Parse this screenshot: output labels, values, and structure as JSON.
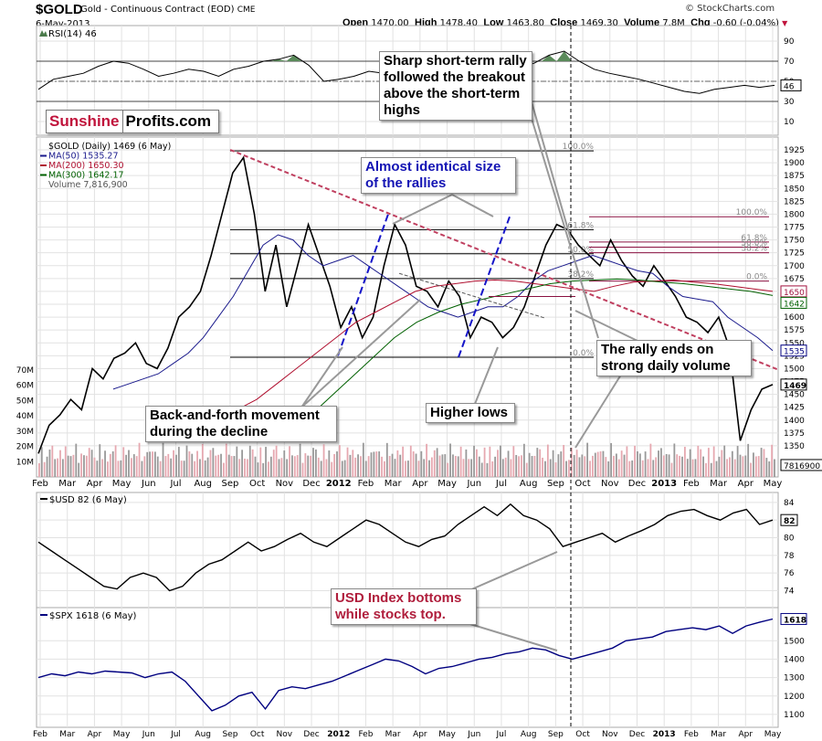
{
  "header": {
    "symbol": "$GOLD",
    "description": "Gold - Continuous Contract (EOD)",
    "exchange": "CME",
    "date": "6-May-2013",
    "credit": "© StockCharts.com",
    "open_label": "Open",
    "open": "1470.00",
    "high_label": "High",
    "high": "1478.40",
    "low_label": "Low",
    "low": "1463.80",
    "close_label": "Close",
    "close": "1469.30",
    "volume_label": "Volume",
    "volume": "7.8M",
    "chg_label": "Chg",
    "chg": "-0.60 (-0.04%)",
    "chg_direction": "down",
    "colors": {
      "down": "#c0143c"
    }
  },
  "logo": {
    "part1": "Sunshine",
    "part2": "Profits.com"
  },
  "callouts": {
    "sharp_rally": "Sharp short-term rally followed the breakout above the short-term highs",
    "identical_rallies": "Almost identical size of the rallies",
    "back_and_forth": "Back-and-forth movement during the decline",
    "higher_lows": "Higher lows",
    "rally_ends": "The rally ends on strong daily volume",
    "usd_bottoms": "USD Index bottoms while stocks top."
  },
  "chart_data": [
    {
      "type": "line",
      "panel": "rsi",
      "title": "RSI(14) 46",
      "ylim": [
        0,
        100
      ],
      "yticks": [
        10,
        30,
        50,
        70,
        90
      ],
      "reference_lines": [
        30,
        50,
        70
      ],
      "current_value": 46,
      "series": [
        {
          "name": "RSI(14)",
          "color": "#000000",
          "values": [
            42,
            52,
            55,
            58,
            65,
            70,
            68,
            62,
            55,
            58,
            62,
            60,
            55,
            62,
            65,
            70,
            72,
            76,
            66,
            50,
            52,
            55,
            60,
            58,
            52,
            48,
            45,
            38,
            42,
            52,
            62,
            66,
            64,
            68,
            76,
            80,
            70,
            62,
            58,
            55,
            52,
            48,
            44,
            40,
            38,
            42,
            44,
            46,
            44,
            46
          ]
        }
      ]
    },
    {
      "type": "line",
      "panel": "gold_price",
      "title": "$GOLD (Daily) 1469 (6 May)",
      "ylim": [
        1325,
        1925
      ],
      "yticks": [
        1350,
        1375,
        1400,
        1425,
        1450,
        1475,
        1500,
        1525,
        1550,
        1575,
        1600,
        1625,
        1650,
        1675,
        1700,
        1725,
        1750,
        1775,
        1800,
        1825,
        1850,
        1875,
        1900,
        1925
      ],
      "x_ticks": [
        "Feb",
        "Mar",
        "Apr",
        "May",
        "Jun",
        "Jul",
        "Aug",
        "Sep",
        "Oct",
        "Nov",
        "Dec",
        "2012",
        "Feb",
        "Mar",
        "Apr",
        "May",
        "Jun",
        "Jul",
        "Aug",
        "Sep",
        "Oct",
        "Nov",
        "Dec",
        "2013",
        "Feb",
        "Mar",
        "Apr",
        "May"
      ],
      "legend": [
        "$GOLD (Daily) 1469 (6 May)",
        "MA(50) 1535.27",
        "MA(200) 1650.30",
        "MA(300) 1642.17",
        "Volume 7,816,900"
      ],
      "value_tags": [
        {
          "label": "1650",
          "color": "#a0103c"
        },
        {
          "label": "1642",
          "color": "#006000"
        },
        {
          "label": "1535",
          "color": "#000080"
        },
        {
          "label": "1469",
          "color": "#000000"
        }
      ],
      "fibonacci_left": [
        {
          "label": "100.0%",
          "value": 1923
        },
        {
          "label": "61.8%",
          "value": 1770
        },
        {
          "label": "50.0%",
          "value": 1723
        },
        {
          "label": "38.2%",
          "value": 1675
        },
        {
          "label": "0.0%",
          "value": 1522
        }
      ],
      "fibonacci_right": [
        {
          "label": "100.0%",
          "value": 1795
        },
        {
          "label": "61.8%",
          "value": 1746
        },
        {
          "label": "50.0%",
          "value": 1736
        },
        {
          "label": "38.2%",
          "value": 1725
        },
        {
          "label": "0.0%",
          "value": 1670
        }
      ],
      "series": [
        {
          "name": "$GOLD",
          "color": "#000000",
          "values": [
            1335,
            1390,
            1410,
            1440,
            1420,
            1500,
            1480,
            1520,
            1530,
            1550,
            1510,
            1500,
            1540,
            1600,
            1620,
            1650,
            1720,
            1800,
            1880,
            1910,
            1800,
            1650,
            1740,
            1620,
            1700,
            1780,
            1720,
            1660,
            1580,
            1620,
            1560,
            1600,
            1700,
            1780,
            1740,
            1660,
            1650,
            1620,
            1670,
            1640,
            1560,
            1600,
            1590,
            1560,
            1580,
            1620,
            1680,
            1740,
            1780,
            1770,
            1740,
            1720,
            1700,
            1750,
            1710,
            1680,
            1660,
            1700,
            1670,
            1640,
            1600,
            1590,
            1570,
            1600,
            1540,
            1360,
            1420,
            1460,
            1469
          ]
        },
        {
          "name": "MA(50)",
          "color": "#1a1a8c",
          "values": [
            null,
            null,
            null,
            null,
            null,
            1460,
            1470,
            1480,
            1490,
            1510,
            1530,
            1560,
            1600,
            1640,
            1690,
            1740,
            1760,
            1750,
            1720,
            1700,
            1710,
            1720,
            1700,
            1680,
            1660,
            1640,
            1620,
            1610,
            1600,
            1610,
            1620,
            1620,
            1640,
            1670,
            1690,
            1700,
            1710,
            1720,
            1710,
            1700,
            1690,
            1685,
            1660,
            1640,
            1635,
            1630,
            1600,
            1580,
            1560,
            1535
          ]
        },
        {
          "name": "MA(200)",
          "color": "#b01030",
          "values": [
            null,
            null,
            null,
            null,
            null,
            null,
            null,
            null,
            1370,
            1390,
            1420,
            1440,
            1470,
            1500,
            1530,
            1560,
            1590,
            1610,
            1630,
            1650,
            1660,
            1665,
            1670,
            1672,
            1670,
            1665,
            1660,
            1655,
            1650,
            1660,
            1668,
            1670,
            1672,
            1668,
            1665,
            1660,
            1655,
            1650
          ]
        },
        {
          "name": "MA(300)",
          "color": "#006000",
          "values": [
            null,
            null,
            null,
            null,
            null,
            null,
            null,
            null,
            null,
            null,
            null,
            null,
            1400,
            1440,
            1480,
            1520,
            1560,
            1590,
            1610,
            1625,
            1635,
            1645,
            1655,
            1665,
            1670,
            1672,
            1674,
            1672,
            1668,
            1665,
            1660,
            1655,
            1650,
            1642
          ]
        }
      ]
    },
    {
      "type": "bar",
      "panel": "volume",
      "title": "Volume 7,816,900",
      "ylim": [
        0,
        70000000
      ],
      "yticks": [
        "10M",
        "20M",
        "30M",
        "40M",
        "50M",
        "60M",
        "70M"
      ],
      "current_value_label": "7816900",
      "colors": {
        "up": "#999999",
        "down": "#e6a8b0"
      }
    },
    {
      "type": "line",
      "panel": "usd",
      "title": "$USD 82 (6 May)",
      "ylim": [
        72.5,
        84.5
      ],
      "yticks": [
        74,
        76,
        78,
        80,
        82,
        84
      ],
      "value_tag": "82",
      "series": [
        {
          "name": "$USD",
          "color": "#000000",
          "values": [
            79.5,
            78.5,
            77.5,
            76.5,
            75.5,
            74.5,
            74.2,
            75.5,
            76.0,
            75.5,
            74.0,
            74.5,
            76.0,
            77.0,
            77.5,
            78.5,
            79.5,
            78.5,
            79.0,
            79.8,
            80.5,
            79.5,
            79.0,
            80.0,
            81.0,
            82.0,
            81.5,
            80.5,
            79.5,
            79.0,
            79.8,
            80.2,
            81.5,
            82.5,
            83.5,
            82.5,
            83.8,
            82.5,
            82.0,
            81.0,
            79.0,
            79.5,
            80.0,
            80.5,
            79.5,
            80.2,
            80.8,
            81.5,
            82.5,
            83.0,
            83.2,
            82.5,
            82.0,
            82.8,
            83.2,
            81.5,
            82.0
          ]
        }
      ]
    },
    {
      "type": "line",
      "panel": "spx",
      "title": "$SPX 1618 (6 May)",
      "ylim": [
        1050,
        1650
      ],
      "yticks": [
        1100,
        1200,
        1300,
        1400,
        1500
      ],
      "value_tag": "1618",
      "series": [
        {
          "name": "$SPX",
          "color": "#000080",
          "values": [
            1300,
            1320,
            1310,
            1330,
            1320,
            1335,
            1330,
            1325,
            1300,
            1320,
            1330,
            1280,
            1200,
            1120,
            1150,
            1200,
            1220,
            1130,
            1230,
            1250,
            1240,
            1260,
            1280,
            1310,
            1340,
            1370,
            1400,
            1390,
            1360,
            1320,
            1350,
            1360,
            1380,
            1400,
            1410,
            1430,
            1440,
            1460,
            1450,
            1420,
            1400,
            1420,
            1440,
            1460,
            1500,
            1510,
            1520,
            1550,
            1560,
            1570,
            1560,
            1580,
            1540,
            1580,
            1600,
            1618
          ]
        }
      ]
    }
  ]
}
